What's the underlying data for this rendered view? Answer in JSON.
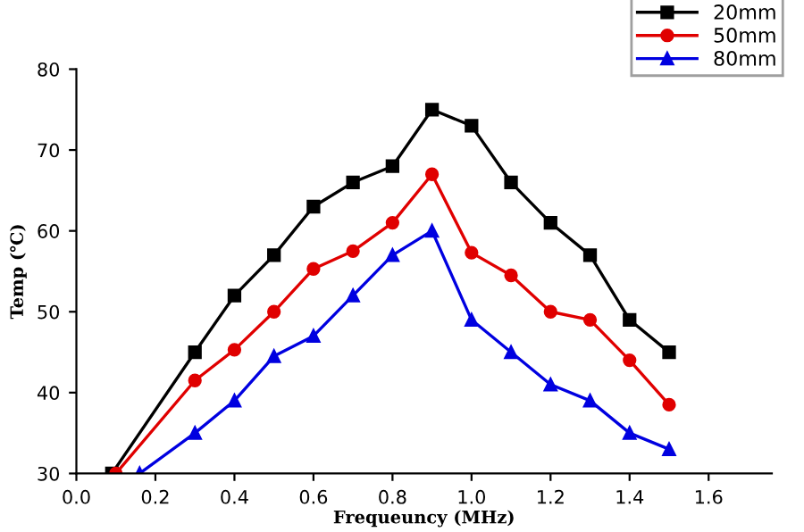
{
  "chart_data": {
    "type": "line",
    "xlabel": "Frequeuncy (MHz)",
    "ylabel": "Temp (℃)",
    "xlim": [
      0,
      1.76
    ],
    "xticks": [
      {
        "value": 0,
        "label": "0.0"
      },
      {
        "value": 0.2,
        "label": "0.2"
      },
      {
        "value": 0.4,
        "label": "0.4"
      },
      {
        "value": 0.6,
        "label": "0.6"
      },
      {
        "value": 0.8,
        "label": "0.8"
      },
      {
        "value": 1.0,
        "label": "1.0"
      },
      {
        "value": 1.2,
        "label": "1.2"
      },
      {
        "value": 1.4,
        "label": "1.4"
      },
      {
        "value": 1.6,
        "label": "1.6"
      }
    ],
    "ylim": [
      30,
      80
    ],
    "yticks": [
      30,
      40,
      50,
      60,
      70,
      80
    ],
    "grid": false,
    "legend": "top right",
    "line_style": "solid",
    "series": [
      {
        "name": "20mm",
        "color": "#000000",
        "marker": "square",
        "x": [
          0.09,
          0.3,
          0.4,
          0.5,
          0.6,
          0.7,
          0.8,
          0.9,
          1.0,
          1.1,
          1.2,
          1.3,
          1.4,
          1.5
        ],
        "values": [
          30,
          45,
          52,
          57,
          63,
          66,
          68,
          75,
          73,
          66,
          61,
          57,
          49,
          45
        ]
      },
      {
        "name": "50mm",
        "color": "#e00000",
        "marker": "circle",
        "x": [
          0.1,
          0.3,
          0.4,
          0.5,
          0.6,
          0.7,
          0.8,
          0.9,
          1.0,
          1.1,
          1.2,
          1.3,
          1.4,
          1.5
        ],
        "values": [
          30,
          41.5,
          45.3,
          50,
          55.3,
          57.5,
          61,
          67,
          57.3,
          54.5,
          50,
          49,
          44,
          38.5
        ]
      },
      {
        "name": "80mm",
        "color": "#0000e0",
        "marker": "triangle",
        "x": [
          0.16,
          0.3,
          0.4,
          0.5,
          0.6,
          0.7,
          0.8,
          0.9,
          1.0,
          1.1,
          1.2,
          1.3,
          1.4,
          1.5
        ],
        "values": [
          30,
          35,
          39,
          44.5,
          47,
          52,
          57,
          60,
          49,
          45,
          41,
          39,
          35,
          33
        ]
      }
    ]
  }
}
